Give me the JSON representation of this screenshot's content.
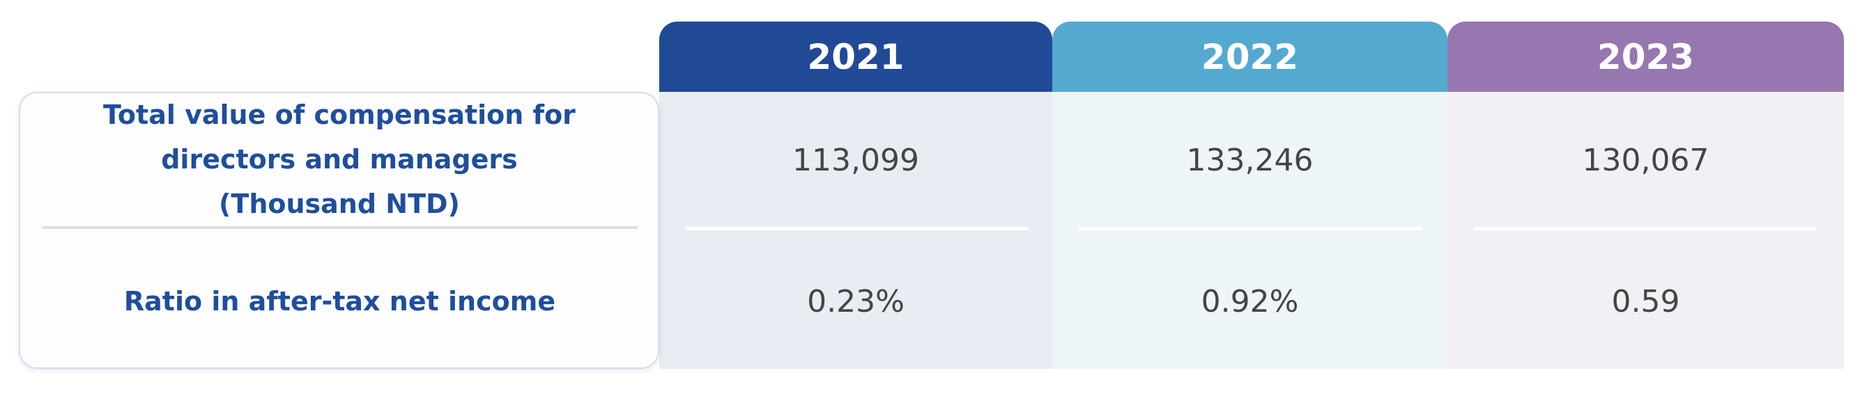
{
  "table": {
    "columns": [
      "2021",
      "2022",
      "2023"
    ],
    "rows": [
      {
        "label": "Total value of compensation for directors and managers (Thousand NTD)",
        "values": [
          "113,099",
          "133,246",
          "130,067"
        ]
      },
      {
        "label": "Ratio in after-tax net income",
        "values": [
          "0.23%",
          "0.92%",
          "0.59"
        ]
      }
    ]
  }
}
